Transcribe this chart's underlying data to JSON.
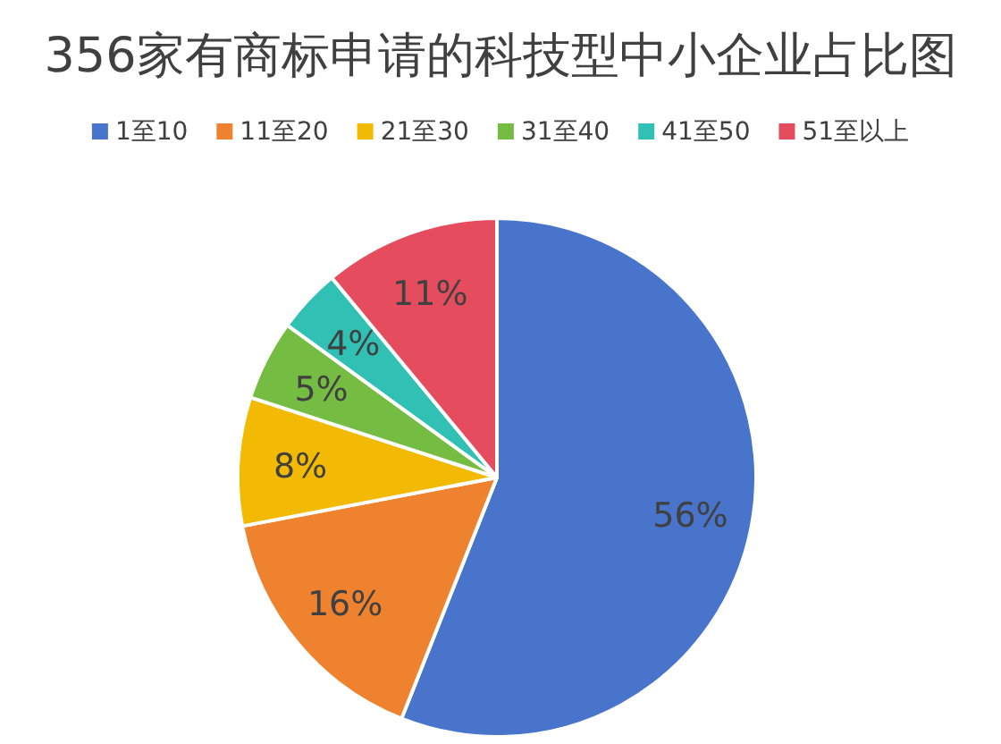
{
  "chart_data": {
    "type": "pie",
    "title": "356家有商标申请的科技型中小企业占比图",
    "categories": [
      "1至10",
      "11至20",
      "21至30",
      "31至40",
      "41至50",
      "51至以上"
    ],
    "values": [
      56,
      16,
      8,
      5,
      4,
      11
    ],
    "colors": [
      "#4874cb",
      "#ee822f",
      "#f2ba02",
      "#75bd42",
      "#30c0b4",
      "#e54c5e"
    ],
    "value_labels": [
      "56%",
      "16%",
      "8%",
      "5%",
      "4%",
      "11%"
    ],
    "legend": "top"
  }
}
